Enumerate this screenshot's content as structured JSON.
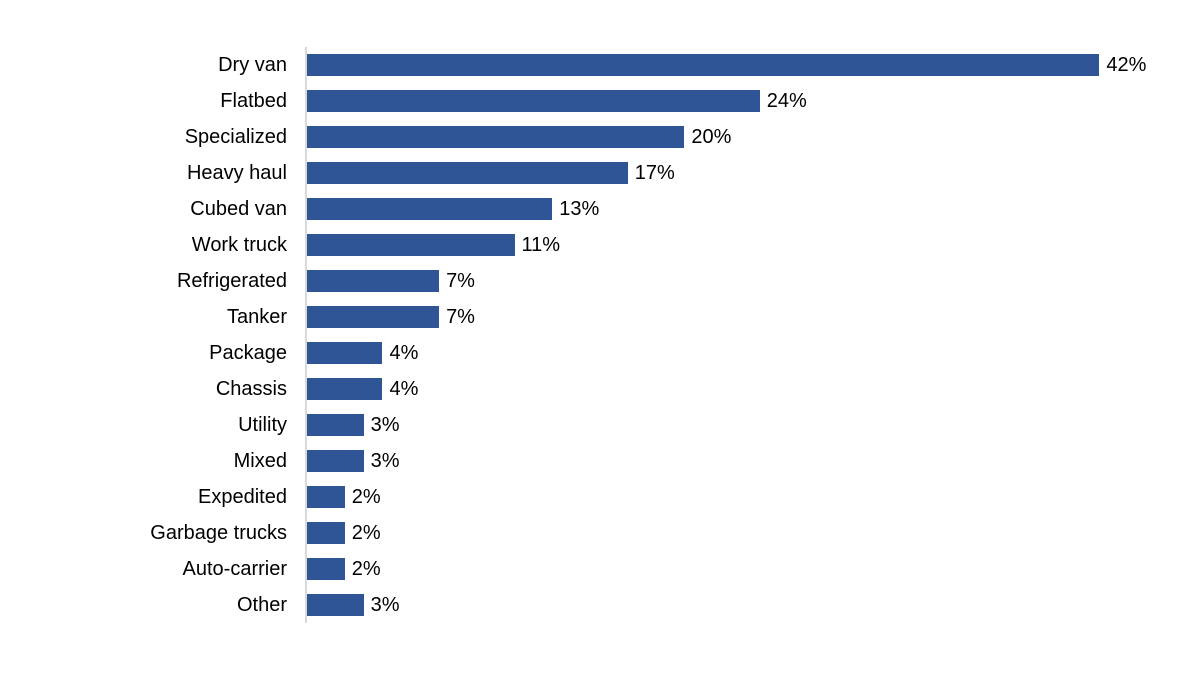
{
  "chart_data": {
    "type": "bar",
    "orientation": "horizontal",
    "title": "",
    "xlabel": "",
    "ylabel": "",
    "grid": false,
    "legend": "none",
    "xlim": [
      0,
      45
    ],
    "bar_color": "#2F5597",
    "axis_line_color": "#D9D9D9",
    "label_color": "#000000",
    "categories": [
      "Dry van",
      "Flatbed",
      "Specialized",
      "Heavy haul",
      "Cubed van",
      "Work truck",
      "Refrigerated",
      "Tanker",
      "Package",
      "Chassis",
      "Utility",
      "Mixed",
      "Expedited",
      "Garbage trucks",
      "Auto-carrier",
      "Other"
    ],
    "values": [
      42,
      24,
      20,
      17,
      13,
      11,
      7,
      7,
      4,
      4,
      3,
      3,
      2,
      2,
      2,
      3
    ],
    "value_labels": [
      "42%",
      "24%",
      "20%",
      "17%",
      "13%",
      "11%",
      "7%",
      "7%",
      "4%",
      "4%",
      "3%",
      "3%",
      "2%",
      "2%",
      "2%",
      "3%"
    ]
  }
}
